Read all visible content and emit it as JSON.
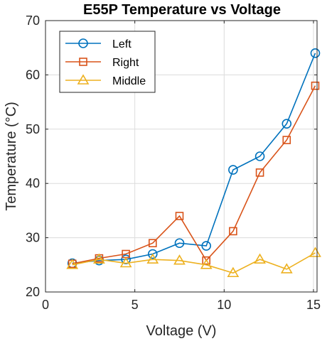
{
  "chart_data": {
    "type": "line",
    "title": "E55P Temperature vs Voltage",
    "xlabel": "Voltage (V)",
    "ylabel": "Temperature (°C)",
    "xlim": [
      0,
      15.2
    ],
    "ylim": [
      20,
      70
    ],
    "xticks": [
      0,
      5,
      10,
      15
    ],
    "yticks": [
      20,
      30,
      40,
      50,
      60,
      70
    ],
    "grid": true,
    "legend_position": "top-left",
    "series": [
      {
        "name": "Left",
        "color": "#0072BD",
        "marker": "circle",
        "x": [
          1.5,
          3,
          4.5,
          6,
          7.5,
          9,
          10.5,
          12,
          13.5,
          15.1
        ],
        "y": [
          25.3,
          25.8,
          26.0,
          27.0,
          29.0,
          28.5,
          42.5,
          45.0,
          51.0,
          64.0
        ]
      },
      {
        "name": "Right",
        "color": "#D95319",
        "marker": "square",
        "x": [
          1.5,
          3,
          4.5,
          6,
          7.5,
          9,
          10.5,
          12,
          13.5,
          15.1
        ],
        "y": [
          25.2,
          26.2,
          27.0,
          29.0,
          34.0,
          25.8,
          31.2,
          42.0,
          48.0,
          58.0
        ]
      },
      {
        "name": "Middle",
        "color": "#EDB120",
        "marker": "triangle",
        "x": [
          1.5,
          3,
          4.5,
          6,
          7.5,
          9,
          10.5,
          12,
          13.5,
          15.1
        ],
        "y": [
          25.0,
          26.0,
          25.3,
          26.0,
          25.8,
          25.0,
          23.5,
          26.0,
          24.2,
          27.2
        ]
      }
    ]
  }
}
